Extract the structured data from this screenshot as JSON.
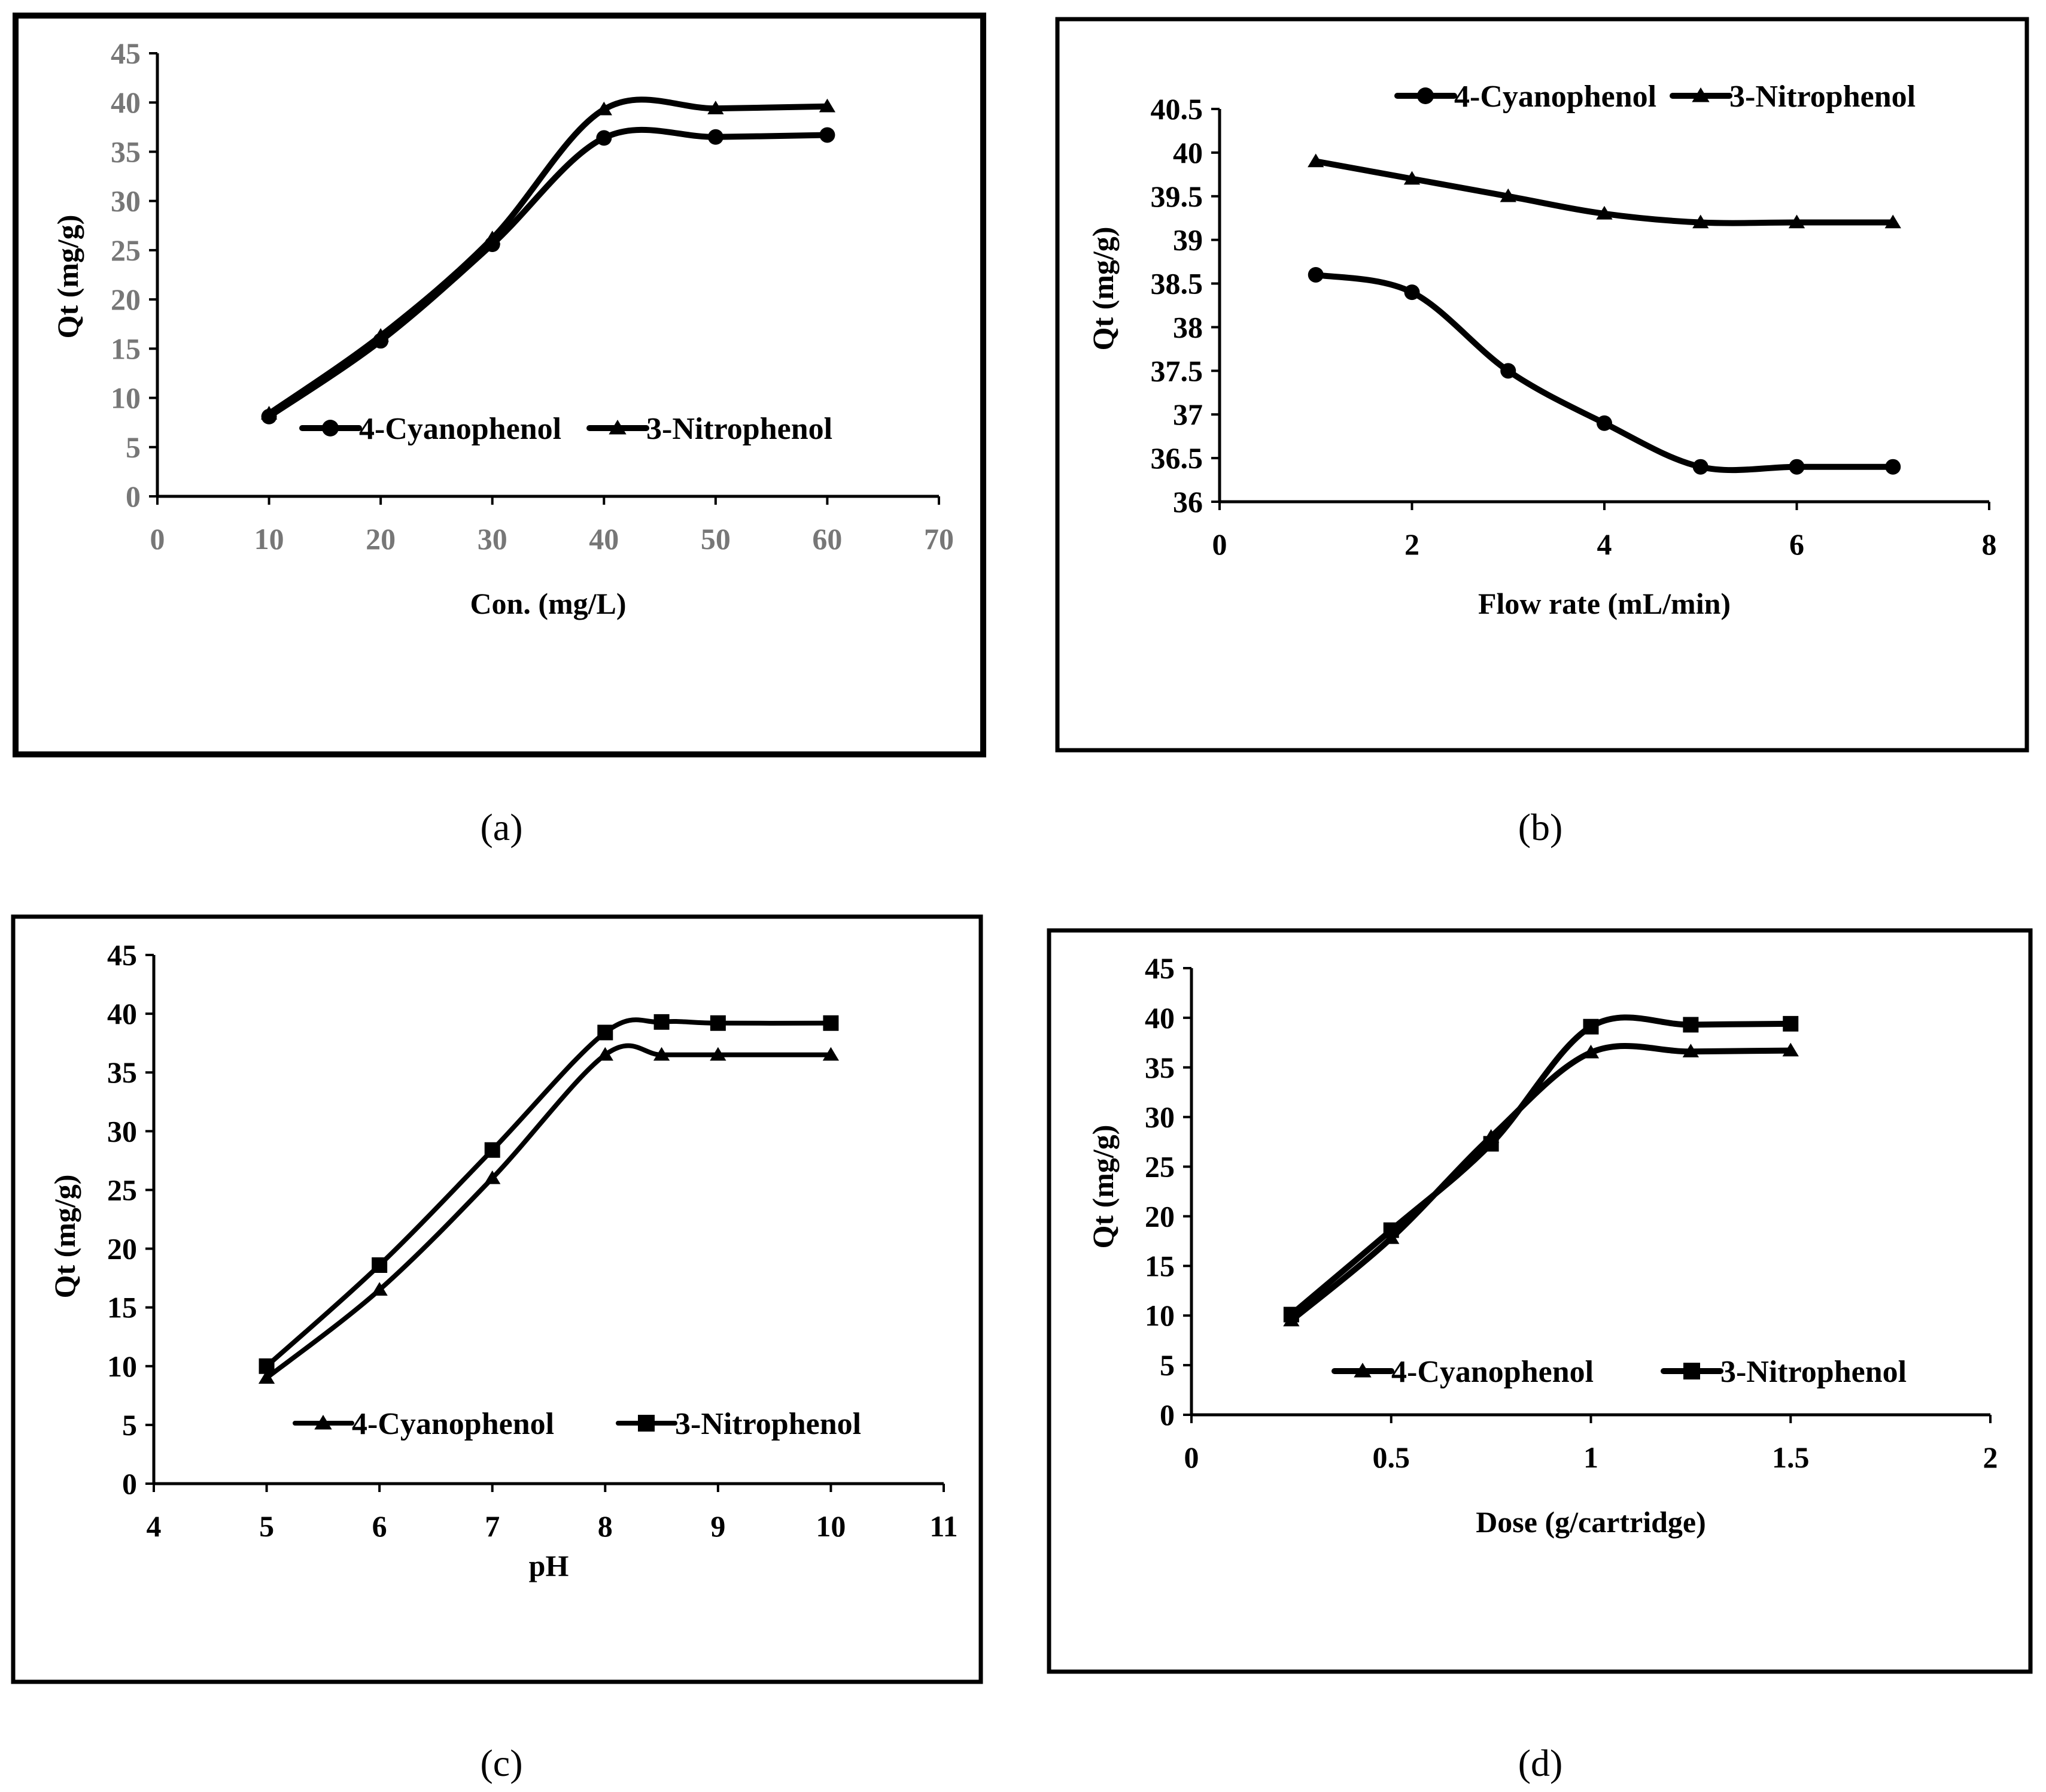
{
  "figure": {
    "panels": [
      {
        "id": "a",
        "caption": "(a)"
      },
      {
        "id": "b",
        "caption": "(b)"
      },
      {
        "id": "c",
        "caption": "(c)"
      },
      {
        "id": "d",
        "caption": "(d)"
      }
    ]
  },
  "colors": {
    "line": "#000000",
    "frame": "#000000",
    "grey_ticks": "#777777"
  },
  "chart_data": [
    {
      "panel": "a",
      "type": "line",
      "title": "",
      "xlabel": "Con. (mg/L)",
      "ylabel": "Qt (mg/g)",
      "xlim": [
        0,
        70
      ],
      "ylim": [
        0,
        45
      ],
      "xticks": [
        0,
        10,
        20,
        30,
        40,
        50,
        60,
        70
      ],
      "yticks": [
        0,
        5,
        10,
        15,
        20,
        25,
        30,
        35,
        40,
        45
      ],
      "grid": false,
      "legend_position": "middle-center",
      "series": [
        {
          "name": "4-Cyanophenol",
          "marker": "circle",
          "x": [
            10,
            20,
            30,
            40,
            50,
            60
          ],
          "y": [
            8.1,
            15.8,
            25.6,
            36.4,
            36.5,
            36.7
          ]
        },
        {
          "name": "3-Nitrophenol",
          "marker": "triangle",
          "x": [
            10,
            20,
            30,
            40,
            50,
            60
          ],
          "y": [
            8.4,
            16.3,
            26.2,
            39.3,
            39.4,
            39.6
          ]
        }
      ]
    },
    {
      "panel": "b",
      "type": "line",
      "title": "",
      "xlabel": "Flow rate (mL/min)",
      "ylabel": "Qt (mg/g)",
      "xlim": [
        0,
        8
      ],
      "ylim": [
        36,
        40.5
      ],
      "xticks": [
        0,
        2,
        4,
        6,
        8
      ],
      "yticks": [
        36,
        36.5,
        37,
        37.5,
        38,
        38.5,
        39,
        39.5,
        40,
        40.5
      ],
      "grid": false,
      "legend_position": "top-center",
      "series": [
        {
          "name": "4-Cyanophenol",
          "marker": "circle",
          "x": [
            1,
            2,
            3,
            4,
            5,
            6,
            7
          ],
          "y": [
            38.6,
            38.4,
            37.5,
            36.9,
            36.4,
            36.4,
            36.4
          ]
        },
        {
          "name": "3-Nitrophenol",
          "marker": "triangle",
          "x": [
            1,
            2,
            3,
            4,
            5,
            6,
            7
          ],
          "y": [
            39.9,
            39.7,
            39.5,
            39.3,
            39.2,
            39.2,
            39.2
          ]
        }
      ]
    },
    {
      "panel": "c",
      "type": "line",
      "title": "",
      "xlabel": "pH",
      "ylabel": "Qt (mg/g)",
      "xlim": [
        4,
        11
      ],
      "ylim": [
        0,
        45
      ],
      "xticks": [
        4,
        5,
        6,
        7,
        8,
        9,
        10,
        11
      ],
      "yticks": [
        0,
        5,
        10,
        15,
        20,
        25,
        30,
        35,
        40,
        45
      ],
      "grid": false,
      "legend_position": "bottom-center",
      "series": [
        {
          "name": "4-Cyanophenol",
          "marker": "triangle",
          "x": [
            5,
            6,
            7,
            8,
            8.5,
            9,
            10
          ],
          "y": [
            9,
            16.5,
            26,
            36.5,
            36.5,
            36.5,
            36.5
          ]
        },
        {
          "name": "3-Nitrophenol",
          "marker": "square",
          "x": [
            5,
            6,
            7,
            8,
            8.5,
            9,
            10
          ],
          "y": [
            10,
            18.6,
            28.4,
            38.4,
            39.3,
            39.2,
            39.2
          ]
        }
      ]
    },
    {
      "panel": "d",
      "type": "line",
      "title": "",
      "xlabel": "Dose (g/cartridge)",
      "ylabel": "Qt (mg/g)",
      "xlim": [
        0,
        2
      ],
      "ylim": [
        0,
        45
      ],
      "xticks": [
        0,
        0.5,
        1,
        1.5,
        2
      ],
      "yticks": [
        0,
        5,
        10,
        15,
        20,
        25,
        30,
        35,
        40,
        45
      ],
      "grid": false,
      "legend_position": "bottom-right",
      "series": [
        {
          "name": "4-Cyanophenol",
          "marker": "triangle",
          "x": [
            0.25,
            0.5,
            0.75,
            1,
            1.25,
            1.5
          ],
          "y": [
            9.5,
            17.8,
            28,
            36.5,
            36.6,
            36.7
          ]
        },
        {
          "name": "3-Nitrophenol",
          "marker": "square",
          "x": [
            0.25,
            0.5,
            0.75,
            1,
            1.25,
            1.5
          ],
          "y": [
            10.1,
            18.6,
            27.3,
            39.1,
            39.3,
            39.4
          ]
        }
      ]
    }
  ]
}
